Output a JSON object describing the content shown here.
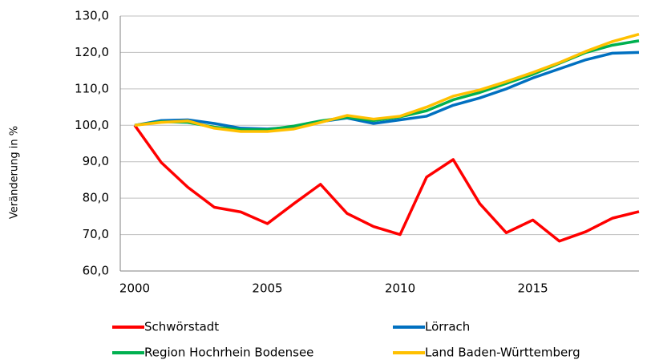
{
  "chart_data": {
    "type": "line",
    "y_label": "Veränderung in %",
    "categories": [
      "2000",
      null,
      null,
      null,
      null,
      "2005",
      null,
      null,
      null,
      null,
      "2010",
      null,
      null,
      null,
      null,
      "2015",
      null,
      null,
      null,
      null
    ],
    "series": [
      {
        "name": "Schwörstadt",
        "color": "#ff0000",
        "values": [
          100,
          89.8,
          83,
          77.5,
          76.2,
          73,
          78.5,
          83.8,
          75.8,
          72.2,
          70,
          85.8,
          90.6,
          78.5,
          70.5,
          74,
          68.2,
          70.8,
          74.5,
          76.3
        ]
      },
      {
        "name": "Lörrach",
        "color": "#0070c0",
        "values": [
          100,
          101.3,
          101.5,
          100.5,
          99.2,
          99,
          99.5,
          101,
          102,
          100.5,
          101.5,
          102.5,
          105.5,
          107.5,
          110,
          113,
          115.5,
          118,
          119.8,
          120
        ]
      },
      {
        "name": "Region Hochrhein Bodensee",
        "color": "#00b050",
        "values": [
          100,
          101,
          100.8,
          99.5,
          98.8,
          98.8,
          99.8,
          101.2,
          102.2,
          101.3,
          102.3,
          104,
          107,
          109,
          111.5,
          114,
          117,
          120,
          122,
          123.2
        ]
      },
      {
        "name": "Land Baden-Württemberg",
        "color": "#ffc000",
        "values": [
          100,
          100.8,
          101.2,
          99.2,
          98.3,
          98.3,
          99,
          100.8,
          102.7,
          101.7,
          102.5,
          105,
          108,
          109.7,
          112,
          114.5,
          117.2,
          120.3,
          123,
          125
        ]
      }
    ],
    "ylim": [
      60,
      130
    ],
    "yticks": [
      {
        "value": 60,
        "label": "60,0"
      },
      {
        "value": 70,
        "label": "70,0"
      },
      {
        "value": 80,
        "label": "80,0"
      },
      {
        "value": 90,
        "label": "90,0"
      },
      {
        "value": 100,
        "label": "100,0"
      },
      {
        "value": 110,
        "label": "110,0"
      },
      {
        "value": 120,
        "label": "120,0"
      },
      {
        "value": 130,
        "label": "130,0"
      }
    ],
    "grid": true,
    "legend": "bottom"
  }
}
